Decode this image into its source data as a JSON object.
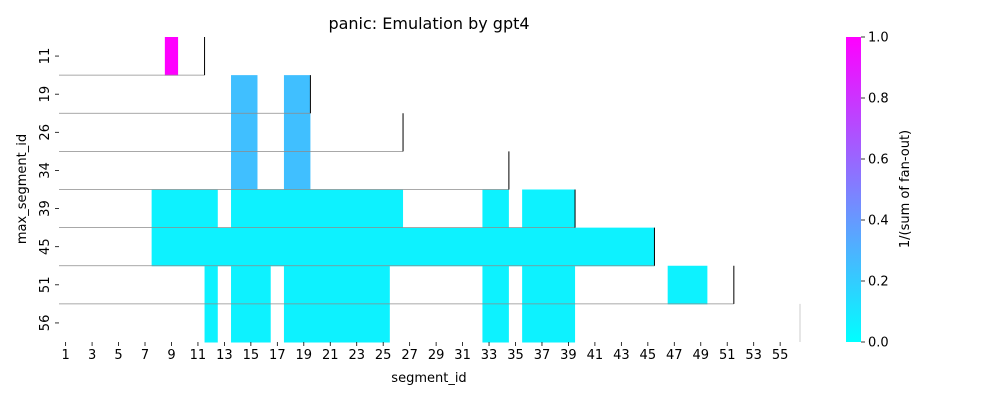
{
  "chart_data": {
    "type": "heatmap",
    "title": "panic: Emulation by gpt4",
    "xlabel": "segment_id",
    "ylabel": "max_segment_id",
    "x_range": [
      1,
      56
    ],
    "x_tick_labels": [
      "1",
      "3",
      "5",
      "7",
      "9",
      "11",
      "13",
      "15",
      "17",
      "19",
      "21",
      "23",
      "25",
      "27",
      "29",
      "31",
      "33",
      "35",
      "37",
      "39",
      "41",
      "43",
      "45",
      "47",
      "49",
      "51",
      "53",
      "55"
    ],
    "rows": [
      "11",
      "19",
      "26",
      "34",
      "39",
      "45",
      "51",
      "56"
    ],
    "colorbar": {
      "label": "1/(sum of fan-out)",
      "min": 0.0,
      "max": 1.0,
      "ticks": [
        "0.0",
        "0.2",
        "0.4",
        "0.6",
        "0.8",
        "1.0"
      ],
      "colormap": "cool",
      "color_low": "#00ffff",
      "color_high": "#ff00ff"
    },
    "cells": [
      {
        "row": "11",
        "x_start": 9,
        "x_end": 9,
        "value": 1.0
      },
      {
        "row": "19",
        "x_start": 14,
        "x_end": 15,
        "value": 0.25
      },
      {
        "row": "19",
        "x_start": 18,
        "x_end": 19,
        "value": 0.25
      },
      {
        "row": "26",
        "x_start": 14,
        "x_end": 15,
        "value": 0.25
      },
      {
        "row": "26",
        "x_start": 18,
        "x_end": 19,
        "value": 0.25
      },
      {
        "row": "34",
        "x_start": 14,
        "x_end": 15,
        "value": 0.25
      },
      {
        "row": "34",
        "x_start": 18,
        "x_end": 19,
        "value": 0.25
      },
      {
        "row": "39",
        "x_start": 8,
        "x_end": 12,
        "value": 0.05
      },
      {
        "row": "39",
        "x_start": 14,
        "x_end": 26,
        "value": 0.05
      },
      {
        "row": "39",
        "x_start": 33,
        "x_end": 34,
        "value": 0.05
      },
      {
        "row": "39",
        "x_start": 36,
        "x_end": 39,
        "value": 0.05
      },
      {
        "row": "45",
        "x_start": 8,
        "x_end": 45,
        "value": 0.05
      },
      {
        "row": "51",
        "x_start": 12,
        "x_end": 12,
        "value": 0.05
      },
      {
        "row": "51",
        "x_start": 14,
        "x_end": 16,
        "value": 0.05
      },
      {
        "row": "51",
        "x_start": 18,
        "x_end": 25,
        "value": 0.05
      },
      {
        "row": "51",
        "x_start": 33,
        "x_end": 34,
        "value": 0.05
      },
      {
        "row": "51",
        "x_start": 36,
        "x_end": 39,
        "value": 0.05
      },
      {
        "row": "51",
        "x_start": 47,
        "x_end": 49,
        "value": 0.05
      },
      {
        "row": "56",
        "x_start": 12,
        "x_end": 12,
        "value": 0.05
      },
      {
        "row": "56",
        "x_start": 14,
        "x_end": 16,
        "value": 0.05
      },
      {
        "row": "56",
        "x_start": 18,
        "x_end": 25,
        "value": 0.05
      },
      {
        "row": "56",
        "x_start": 33,
        "x_end": 34,
        "value": 0.05
      },
      {
        "row": "56",
        "x_start": 36,
        "x_end": 39,
        "value": 0.05
      }
    ],
    "row_boundaries": [
      {
        "row": "11",
        "max_segment_id": 11
      },
      {
        "row": "19",
        "max_segment_id": 19
      },
      {
        "row": "26",
        "max_segment_id": 26
      },
      {
        "row": "34",
        "max_segment_id": 34
      },
      {
        "row": "39",
        "max_segment_id": 39
      },
      {
        "row": "45",
        "max_segment_id": 45
      },
      {
        "row": "51",
        "max_segment_id": 51
      },
      {
        "row": "56",
        "max_segment_id": 56
      }
    ]
  }
}
